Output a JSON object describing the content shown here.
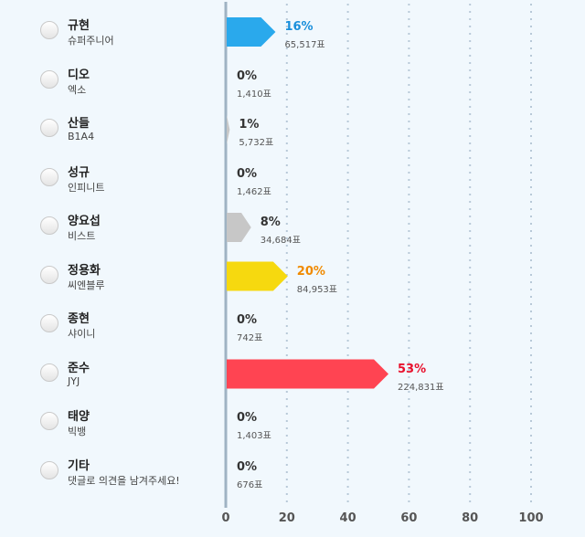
{
  "chart_data": {
    "type": "bar",
    "orientation": "horizontal",
    "grid": true,
    "xlim": [
      0,
      100
    ],
    "xticks": [
      0,
      20,
      40,
      60,
      80,
      100
    ],
    "colors": {
      "blue": "#2aa9ec",
      "gray": "#c7c7c7",
      "yellow": "#f6d90f",
      "red": "#ff4452",
      "pct_blue": "#1a8fdb",
      "pct_orange": "#f08a00",
      "pct_red": "#e8102c",
      "pct_default": "#333333",
      "axis": "#9fb3c3",
      "grid": "#b8c9d8"
    },
    "items": [
      {
        "name": "규현",
        "group": "슈퍼주니어",
        "percent": 16,
        "percent_label": "16%",
        "votes": "65,517표",
        "bar_color": "blue",
        "text_color": "pct_blue"
      },
      {
        "name": "디오",
        "group": "엑소",
        "percent": 0,
        "percent_label": "0%",
        "votes": "1,410표",
        "bar_color": "gray",
        "text_color": "pct_default"
      },
      {
        "name": "산들",
        "group": "B1A4",
        "percent": 1,
        "percent_label": "1%",
        "votes": "5,732표",
        "bar_color": "gray",
        "text_color": "pct_default"
      },
      {
        "name": "성규",
        "group": "인피니트",
        "percent": 0,
        "percent_label": "0%",
        "votes": "1,462표",
        "bar_color": "gray",
        "text_color": "pct_default"
      },
      {
        "name": "양요섭",
        "group": "비스트",
        "percent": 8,
        "percent_label": "8%",
        "votes": "34,684표",
        "bar_color": "gray",
        "text_color": "pct_default"
      },
      {
        "name": "정용화",
        "group": "씨엔블루",
        "percent": 20,
        "percent_label": "20%",
        "votes": "84,953표",
        "bar_color": "yellow",
        "text_color": "pct_orange"
      },
      {
        "name": "종현",
        "group": "샤이니",
        "percent": 0,
        "percent_label": "0%",
        "votes": "742표",
        "bar_color": "gray",
        "text_color": "pct_default"
      },
      {
        "name": "준수",
        "group": "JYJ",
        "percent": 53,
        "percent_label": "53%",
        "votes": "224,831표",
        "bar_color": "red",
        "text_color": "pct_red"
      },
      {
        "name": "태양",
        "group": "빅뱅",
        "percent": 0,
        "percent_label": "0%",
        "votes": "1,403표",
        "bar_color": "gray",
        "text_color": "pct_default"
      },
      {
        "name": "기타",
        "group": "댓글로 의견을 남겨주세요!",
        "percent": 0,
        "percent_label": "0%",
        "votes": "676표",
        "bar_color": "gray",
        "text_color": "pct_default"
      }
    ]
  }
}
